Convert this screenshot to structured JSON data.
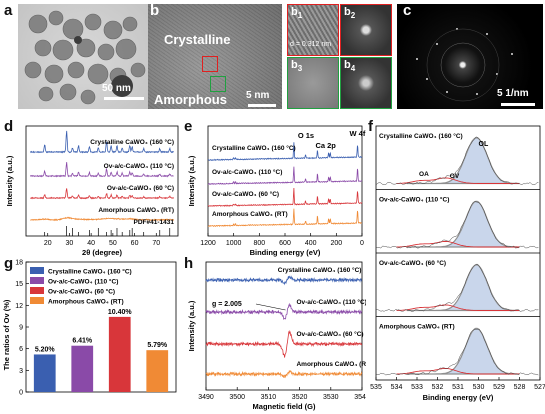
{
  "panels": {
    "a": {
      "letter": "a",
      "scale": "50 nm"
    },
    "b": {
      "letter": "b",
      "crystalline": "Crystalline",
      "amorphous": "Amorphous",
      "scale": "5 nm"
    },
    "b_subs": {
      "b1": "b",
      "b1_sub": "1",
      "b2": "b",
      "b2_sub": "2",
      "b3": "b",
      "b3_sub": "3",
      "b4": "b",
      "b4_sub": "4",
      "dspacing": "d = 0.312 nm"
    },
    "c": {
      "letter": "c",
      "scale": "5 1/nm"
    },
    "d": {
      "letter": "d"
    },
    "e": {
      "letter": "e"
    },
    "f": {
      "letter": "f"
    },
    "g": {
      "letter": "g"
    },
    "h": {
      "letter": "h"
    }
  },
  "chart_data": [
    {
      "id": "d",
      "type": "line",
      "xlabel": "2θ (degree)",
      "ylabel": "Intensity (a.u.)",
      "xlim": [
        10,
        80
      ],
      "xticks": [
        "20",
        "30",
        "40",
        "50",
        "60",
        "70"
      ],
      "series": [
        {
          "name": "Crystalline CaWO₄ (160 °C)",
          "color": "#3a5fb0"
        },
        {
          "name": "Ov-a/c-CaWO₄ (110 °C)",
          "color": "#8a4aa8"
        },
        {
          "name": "Ov-a/c-CaWO₄ (60 °C)",
          "color": "#d8363a"
        },
        {
          "name": "Amorphous CaWO₄ (RT)",
          "color": "#f08a35"
        }
      ],
      "reference": "PDF#41-1431",
      "reference_peaks": [
        18.6,
        28.7,
        31.4,
        34.2,
        39.2,
        43.3,
        47.1,
        49.2,
        51.9,
        54.3,
        57.8,
        58.9,
        64.2,
        71.6,
        76.2
      ]
    },
    {
      "id": "e",
      "type": "line",
      "xlabel": "Binding energy (eV)",
      "ylabel": "Intensity (a.u.)",
      "xlim": [
        1200,
        0
      ],
      "xticks": [
        "1200",
        "1000",
        "800",
        "600",
        "400",
        "200",
        "0"
      ],
      "annotations": [
        "O 1s",
        "Ca 2p",
        "W 4f"
      ],
      "series": [
        {
          "name": "Crystalline CaWO₄ (160 °C)",
          "color": "#3a5fb0"
        },
        {
          "name": "Ov-a/c-CaWO₄ (110 °C)",
          "color": "#8a4aa8"
        },
        {
          "name": "Ov-a/c-CaWO₄ (60 °C)",
          "color": "#d8363a"
        },
        {
          "name": "Amorphous CaWO₄ (RT)",
          "color": "#f08a35"
        }
      ]
    },
    {
      "id": "f",
      "type": "line",
      "xlabel": "Binding energy (eV)",
      "ylabel": "",
      "xlim": [
        535,
        527
      ],
      "xticks": [
        "535",
        "534",
        "533",
        "532",
        "531",
        "530",
        "529",
        "528",
        "527"
      ],
      "annotations": [
        "OL",
        "OA",
        "OV"
      ],
      "panels": [
        "Crystalline CaWO₄ (160 °C)",
        "Ov-a/c-CaWO₄ (110 °C)",
        "Ov-a/c-CaWO₄ (60 °C)",
        "Amorphous CaWO₄ (RT)"
      ]
    },
    {
      "id": "g",
      "type": "bar",
      "ylabel": "The ratios of Ov (%)",
      "ylim": [
        0,
        18
      ],
      "yticks": [
        "0",
        "3",
        "6",
        "9",
        "12",
        "15",
        "18"
      ],
      "categories": [
        "Crystalline CaWO₄ (160 °C)",
        "Ov-a/c-CaWO₄ (110 °C)",
        "Ov-a/c-CaWO₄ (60 °C)",
        "Amorphous CaWO₄ (RT)"
      ],
      "values": [
        5.2,
        6.41,
        10.4,
        5.79
      ],
      "labels": [
        "5.20%",
        "6.41%",
        "10.40%",
        "5.79%"
      ],
      "colors": [
        "#3a5fb0",
        "#8a4aa8",
        "#d8363a",
        "#f08a35"
      ]
    },
    {
      "id": "h",
      "type": "line",
      "xlabel": "Magnetic field (G)",
      "ylabel": "Intensity (a.u.)",
      "xlim": [
        3490,
        3540
      ],
      "xticks": [
        "3490",
        "3500",
        "3510",
        "3520",
        "3530",
        "3540"
      ],
      "annotation": "g = 2.005",
      "series": [
        {
          "name": "Crystalline CaWO₄ (160 °C)",
          "color": "#3a5fb0"
        },
        {
          "name": "Ov-a/c-CaWO₄ (110 °C)",
          "color": "#8a4aa8"
        },
        {
          "name": "Ov-a/c-CaWO₄ (60 °C)",
          "color": "#d8363a"
        },
        {
          "name": "Amorphous CaWO₄ (RT)",
          "color": "#f08a35"
        }
      ]
    }
  ]
}
